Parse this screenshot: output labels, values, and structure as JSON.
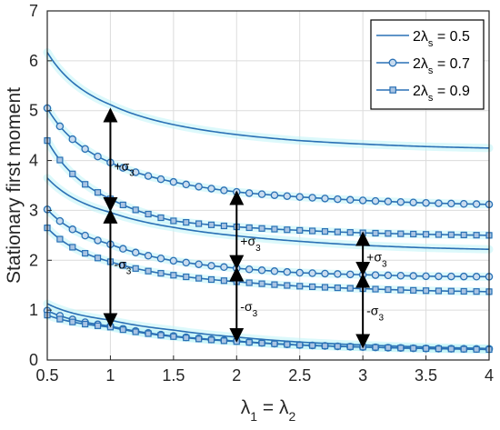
{
  "chart_data": {
    "type": "line",
    "xlabel": {
      "base": "λ",
      "sub1": "1",
      "mid": " = λ",
      "sub2": "2"
    },
    "ylabel": "Stationary first moment",
    "xlim": [
      0.5,
      4
    ],
    "ylim": [
      0,
      7
    ],
    "xticks": [
      "0.5",
      "1",
      "1.5",
      "2",
      "2.5",
      "3",
      "3.5",
      "4"
    ],
    "yticks": [
      "0",
      "1",
      "2",
      "3",
      "4",
      "5",
      "6",
      "7"
    ],
    "grid": true,
    "legend_position": "top-right",
    "colors": {
      "axis": "#262626",
      "grid": "#dcdcdc",
      "band": "#bff4f8",
      "arrow": "#000000"
    },
    "series": [
      {
        "legend": {
          "pre": "2λ",
          "sub": "s",
          "post": " = 0.5"
        },
        "marker": "none",
        "color": "#2a70b5",
        "x": [
          0.5,
          1,
          1.5,
          2,
          2.5,
          3,
          3.5,
          4
        ],
        "mean": [
          3.65,
          2.96,
          2.66,
          2.49,
          2.38,
          2.3,
          2.25,
          2.22
        ],
        "upper": [
          6.17,
          5.12,
          4.72,
          4.52,
          4.4,
          4.33,
          4.28,
          4.25
        ],
        "lower": [
          1.13,
          0.8,
          0.6,
          0.46,
          0.36,
          0.3,
          0.26,
          0.23
        ]
      },
      {
        "legend": {
          "pre": "2λ",
          "sub": "s",
          "post": " = 0.7"
        },
        "marker": "circle",
        "color": "#2a70b5",
        "x": [
          0.5,
          1,
          1.5,
          2,
          2.5,
          3,
          3.5,
          4
        ],
        "mean": [
          3.02,
          2.32,
          1.99,
          1.84,
          1.75,
          1.71,
          1.68,
          1.67
        ],
        "upper": [
          5.05,
          3.96,
          3.57,
          3.37,
          3.27,
          3.2,
          3.15,
          3.12
        ],
        "lower": [
          0.99,
          0.68,
          0.48,
          0.38,
          0.3,
          0.26,
          0.23,
          0.22
        ]
      },
      {
        "legend": {
          "pre": "2λ",
          "sub": "s",
          "post": " = 0.9"
        },
        "marker": "square",
        "color": "#2a70b5",
        "x": [
          0.5,
          1,
          1.5,
          2,
          2.5,
          3,
          3.5,
          4
        ],
        "mean": [
          2.65,
          1.97,
          1.7,
          1.57,
          1.48,
          1.43,
          1.39,
          1.37
        ],
        "upper": [
          4.4,
          3.23,
          2.79,
          2.67,
          2.6,
          2.55,
          2.52,
          2.5
        ],
        "lower": [
          0.9,
          0.66,
          0.47,
          0.37,
          0.3,
          0.26,
          0.23,
          0.21
        ]
      }
    ],
    "annotations": [
      {
        "x": 1,
        "from": 3.0,
        "to": 5.03,
        "label_pre": "+σ",
        "label_sub": "3",
        "label_y": 3.8
      },
      {
        "x": 1,
        "from": 3.0,
        "to": 0.68,
        "label_pre": "-σ",
        "label_sub": "3",
        "label_y": 1.83
      },
      {
        "x": 2,
        "from": 1.84,
        "to": 3.37,
        "label_pre": "+σ",
        "label_sub": "3",
        "label_y": 2.3
      },
      {
        "x": 2,
        "from": 1.84,
        "to": 0.38,
        "label_pre": "-σ",
        "label_sub": "3",
        "label_y": 0.98
      },
      {
        "x": 3,
        "from": 1.71,
        "to": 2.55,
        "label_pre": "+σ",
        "label_sub": "3",
        "label_y": 1.98
      },
      {
        "x": 3,
        "from": 1.71,
        "to": 0.26,
        "label_pre": "-σ",
        "label_sub": "3",
        "label_y": 0.9
      }
    ]
  }
}
